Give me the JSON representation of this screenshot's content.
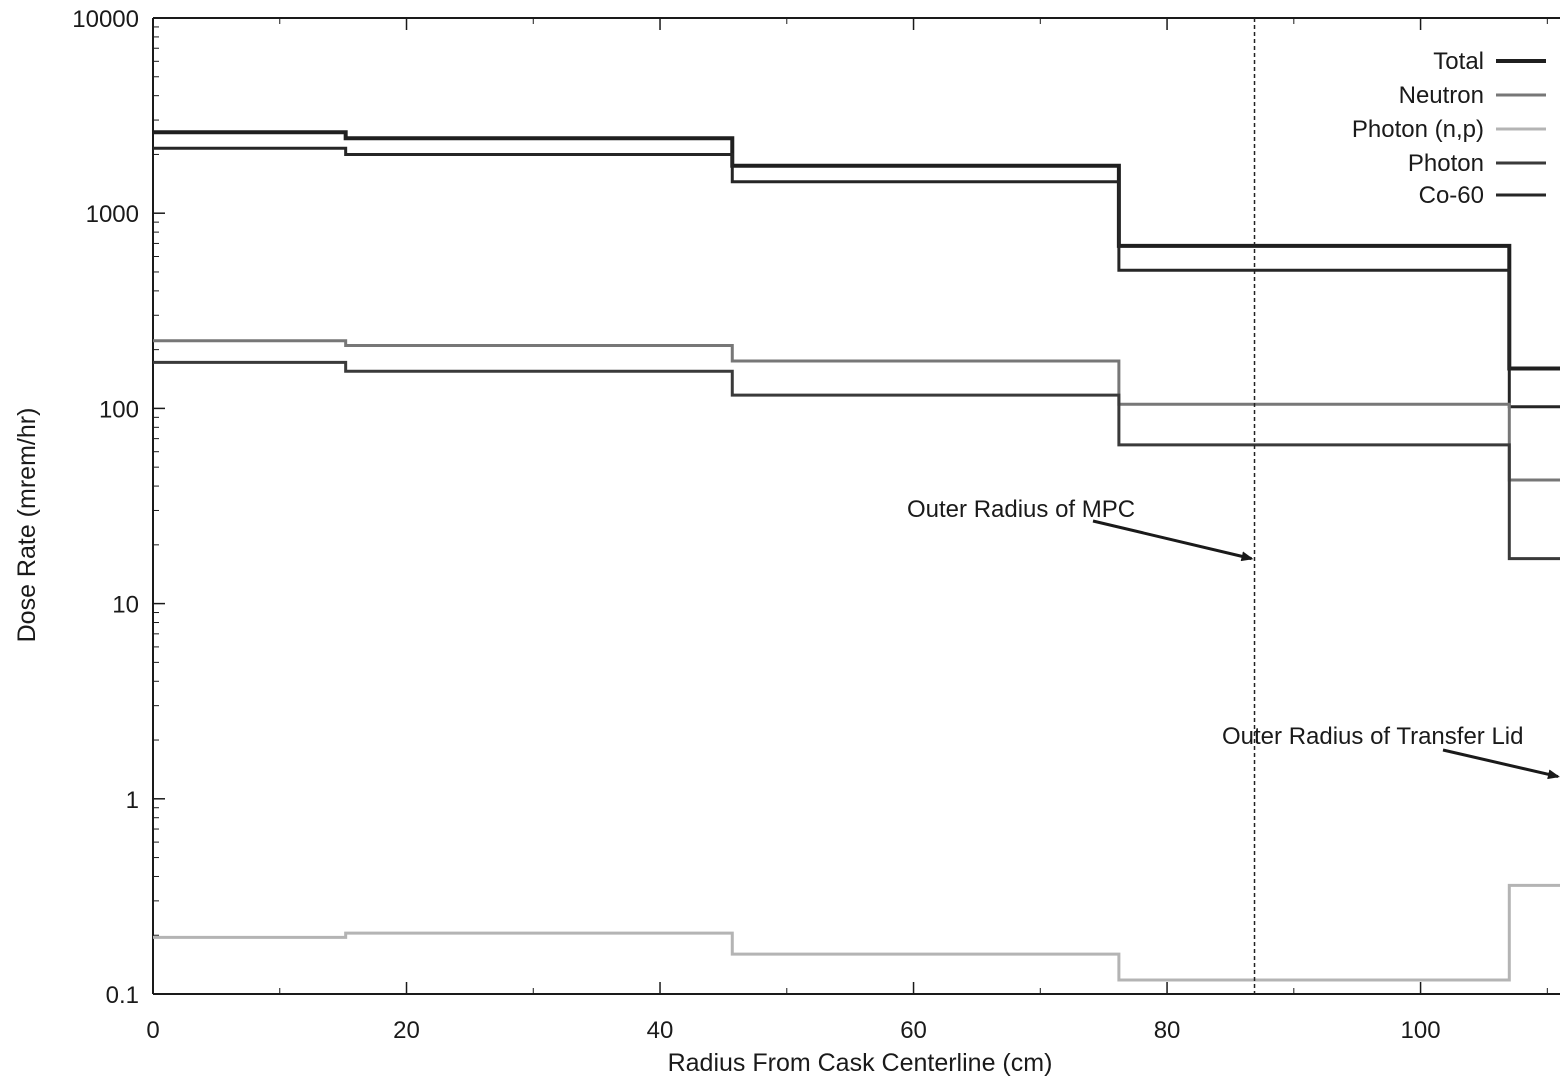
{
  "chart_data": {
    "type": "line",
    "step": true,
    "xlabel": "Radius From Cask Centerline (cm)",
    "ylabel": "Dose Rate (mrem/hr)",
    "xlim": [
      0,
      111
    ],
    "ylim": [
      0.1,
      10000
    ],
    "yscale": "log",
    "x_ticks": [
      0,
      20,
      40,
      60,
      80,
      100
    ],
    "y_ticks": [
      0.1,
      1,
      10,
      100,
      1000,
      10000
    ],
    "y_tick_labels": [
      "0.1",
      "1",
      "10",
      "100",
      "1000",
      "10000"
    ],
    "grid": false,
    "legend_position": "top-right",
    "legend": [
      {
        "name": "Total",
        "color": "#1f1f1f",
        "width": 4
      },
      {
        "name": "Neutron",
        "color": "#777777",
        "width": 3
      },
      {
        "name": "Photon (n,p)",
        "color": "#b4b4b4",
        "width": 3
      },
      {
        "name": "Photon",
        "color": "#3a3a3a",
        "width": 3
      },
      {
        "name": "Co-60",
        "color": "#262626",
        "width": 3
      }
    ],
    "bin_edges": [
      0,
      15.2,
      45.7,
      76.2,
      107,
      111
    ],
    "series": [
      {
        "name": "Total",
        "color": "#1f1f1f",
        "width": 4,
        "values": [
          2600,
          2420,
          1750,
          680,
          160
        ]
      },
      {
        "name": "Co-60",
        "color": "#262626",
        "width": 3,
        "values": [
          2150,
          2000,
          1450,
          510,
          102
        ]
      },
      {
        "name": "Neutron",
        "color": "#777777",
        "width": 3,
        "values": [
          222,
          210,
          175,
          105,
          43
        ]
      },
      {
        "name": "Photon",
        "color": "#3a3a3a",
        "width": 3,
        "values": [
          172,
          155,
          117,
          65,
          17
        ]
      },
      {
        "name": "Photon (n,p)",
        "color": "#b4b4b4",
        "width": 3,
        "values": [
          0.195,
          0.205,
          0.16,
          0.118,
          0.36
        ]
      }
    ],
    "reference_lines": [
      {
        "x": 86.9,
        "style": "dashed"
      }
    ],
    "annotations": [
      {
        "text": "Outer Radius of MPC",
        "arrow_to": [
          86.9,
          17
        ]
      },
      {
        "text": "Outer Radius of Transfer Lid",
        "arrow_to": [
          111,
          1.3
        ]
      }
    ]
  }
}
